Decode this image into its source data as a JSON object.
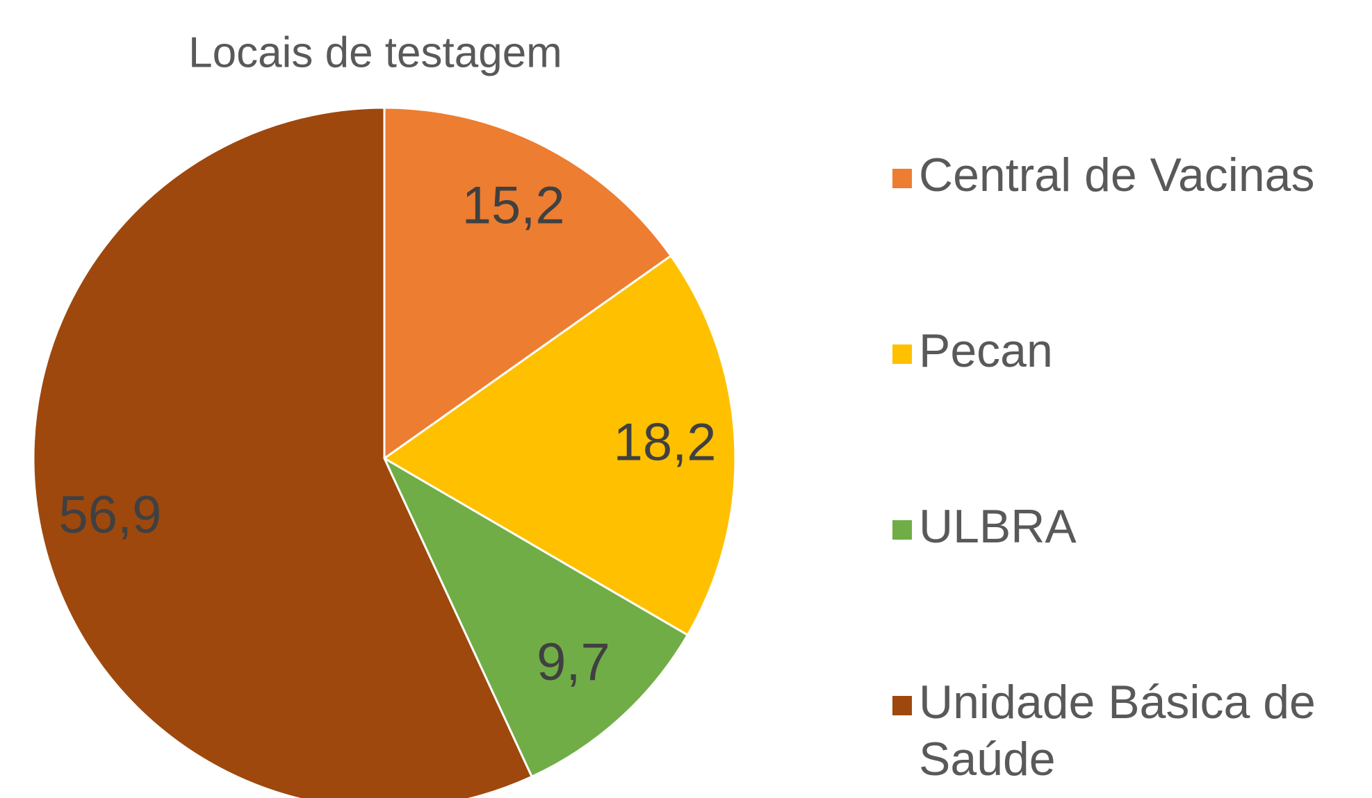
{
  "chart_data": {
    "type": "pie",
    "title": "Locais de testagem",
    "categories": [
      "Central de Vacinas",
      "Pecan",
      "ULBRA",
      "Unidade Básica de Saúde"
    ],
    "values": [
      15.2,
      18.2,
      9.7,
      56.9
    ],
    "value_labels": [
      "15,2",
      "18,2",
      "9,7",
      "56,9"
    ],
    "colors": [
      "#ED7D31",
      "#FFC000",
      "#70AD47",
      "#9E480E"
    ],
    "legend": "right"
  }
}
